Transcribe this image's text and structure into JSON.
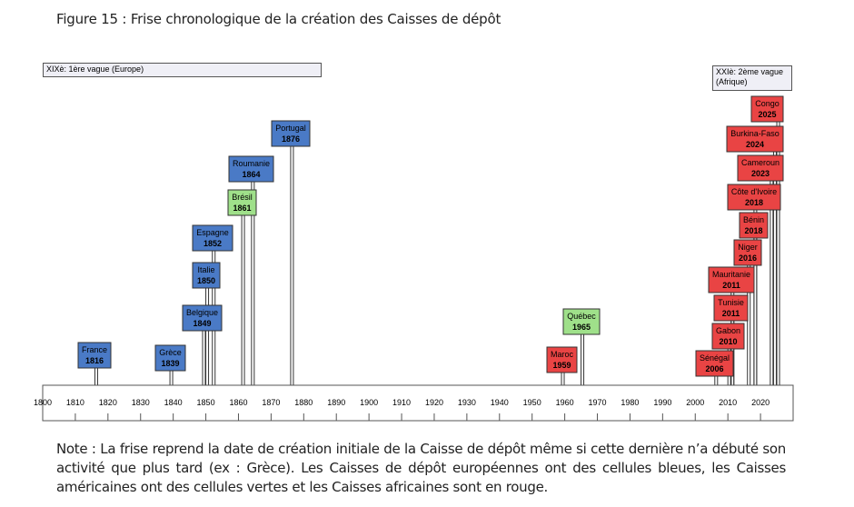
{
  "figure_title": "Figure 15 : Frise chronologique de la création des Caisses de dépôt",
  "waves": {
    "first": "XIXè: 1ère vague (Europe)",
    "second": "XXIè: 2ème vague (Afrique)"
  },
  "note": "Note : La frise reprend la date de création initiale de la Caisse de dépôt même si cette dernière n’a débuté son activité que plus tard (ex : Grèce). Les Caisses de dépôt européennes ont des cellules bleues, les Caisses américaines ont des cellules vertes et les Caisses africaines sont en rouge.",
  "colors": {
    "europe": "#4a7ac6",
    "amerique": "#9fe08a",
    "afrique": "#e94444"
  },
  "chart_data": {
    "type": "timeline",
    "xlim": [
      1800,
      2030
    ],
    "tick_labels": [
      "1800",
      "1810",
      "1820",
      "1830",
      "1840",
      "1850",
      "1860",
      "1870",
      "1880",
      "1890",
      "1900",
      "1910",
      "1920",
      "1930",
      "1940",
      "1950",
      "1960",
      "1970",
      "1980",
      "1990",
      "2000",
      "2010",
      "2020"
    ],
    "events": [
      {
        "name": "France",
        "year": 1816,
        "label": "1816",
        "region": "europe"
      },
      {
        "name": "Grèce",
        "year": 1839,
        "label": "1839",
        "region": "europe"
      },
      {
        "name": "Belgique",
        "year": 1849,
        "label": "1849",
        "region": "europe"
      },
      {
        "name": "Italie",
        "year": 1850,
        "label": "1850",
        "region": "europe"
      },
      {
        "name": "Espagne",
        "year": 1852,
        "label": "1852",
        "region": "europe"
      },
      {
        "name": "Brésil",
        "year": 1861,
        "label": "1861",
        "region": "amerique"
      },
      {
        "name": "Roumanie",
        "year": 1864,
        "label": "1864",
        "region": "europe"
      },
      {
        "name": "Portugal",
        "year": 1876,
        "label": "1876",
        "region": "europe"
      },
      {
        "name": "Maroc",
        "year": 1959,
        "label": "1959",
        "region": "afrique"
      },
      {
        "name": "Québec",
        "year": 1965,
        "label": "1965",
        "region": "amerique"
      },
      {
        "name": "Sénégal",
        "year": 2006,
        "label": "2006",
        "region": "afrique"
      },
      {
        "name": "Gabon",
        "year": 2010,
        "label": "2010",
        "region": "afrique"
      },
      {
        "name": "Tunisie",
        "year": 2011,
        "label": "2011",
        "region": "afrique"
      },
      {
        "name": "Mauritanie",
        "year": 2011,
        "label": "2011",
        "region": "afrique"
      },
      {
        "name": "Niger",
        "year": 2016,
        "label": "2016",
        "region": "afrique"
      },
      {
        "name": "Bénin",
        "year": 2018,
        "label": "2018",
        "region": "afrique"
      },
      {
        "name": "Côte d'Ivoire",
        "year": 2018,
        "label": "2018",
        "region": "afrique"
      },
      {
        "name": "Cameroun",
        "year": 2023,
        "label": "2023",
        "region": "afrique"
      },
      {
        "name": "Burkina-Faso",
        "year": 2024,
        "label": "2024",
        "region": "afrique"
      },
      {
        "name": "Congo",
        "year": 2025,
        "label": "2025",
        "region": "afrique"
      }
    ]
  }
}
